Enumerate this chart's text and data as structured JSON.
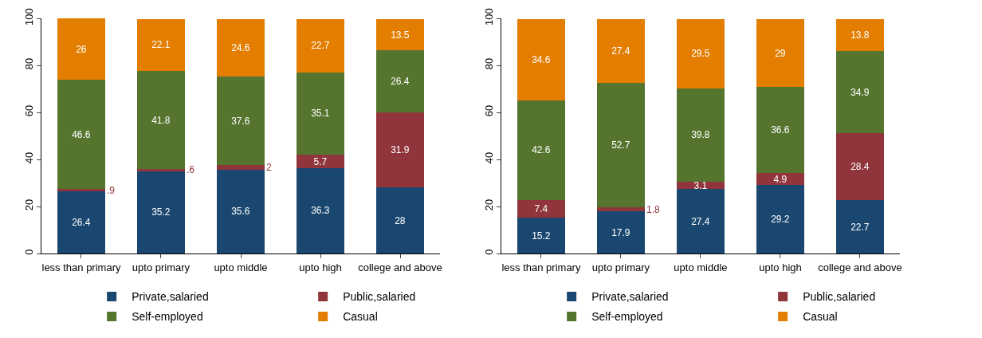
{
  "chart_data": [
    {
      "type": "bar",
      "stacked": true,
      "categories": [
        "less than primary",
        "upto primary",
        "upto middle",
        "upto high",
        "college and above"
      ],
      "ylim": [
        0,
        100
      ],
      "yticks": [
        0,
        20,
        40,
        60,
        80,
        100
      ],
      "grid": false,
      "legend": "bottom",
      "series": [
        {
          "name": "Private,salaried",
          "color": "#1a476f",
          "values": [
            26.4,
            35.2,
            35.6,
            36.3,
            28
          ],
          "value_labels": [
            "26.4",
            "35.2",
            "35.6",
            "36.3",
            "28"
          ]
        },
        {
          "name": "Public,salaried",
          "color": "#90353b",
          "values": [
            0.9,
            0.6,
            2,
            5.7,
            31.9
          ],
          "value_labels": [
            ".9",
            ".6",
            "2",
            "5.7",
            "31.9"
          ]
        },
        {
          "name": "Self-employed",
          "color": "#55752f",
          "values": [
            46.6,
            41.8,
            37.6,
            35.1,
            26.4
          ],
          "value_labels": [
            "46.6",
            "41.8",
            "37.6",
            "35.1",
            "26.4"
          ]
        },
        {
          "name": "Casual",
          "color": "#e37e00",
          "values": [
            26,
            22.1,
            24.6,
            22.7,
            13.5
          ],
          "value_labels": [
            "26",
            "22.1",
            "24.6",
            "22.7",
            "13.5"
          ]
        }
      ]
    },
    {
      "type": "bar",
      "stacked": true,
      "categories": [
        "less than primary",
        "upto primary",
        "upto middle",
        "upto high",
        "college and above"
      ],
      "ylim": [
        0,
        100
      ],
      "yticks": [
        0,
        20,
        40,
        60,
        80,
        100
      ],
      "grid": false,
      "legend": "bottom",
      "series": [
        {
          "name": "Private,salaried",
          "color": "#1a476f",
          "values": [
            15.2,
            17.9,
            27.4,
            29.2,
            22.7
          ],
          "value_labels": [
            "15.2",
            "17.9",
            "27.4",
            "29.2",
            "22.7"
          ]
        },
        {
          "name": "Public,salaried",
          "color": "#90353b",
          "values": [
            7.4,
            1.8,
            3.1,
            4.9,
            28.4
          ],
          "value_labels": [
            "7.4",
            "1.8",
            "3.1",
            "4.9",
            "28.4"
          ]
        },
        {
          "name": "Self-employed",
          "color": "#55752f",
          "values": [
            42.6,
            52.7,
            39.8,
            36.6,
            34.9
          ],
          "value_labels": [
            "42.6",
            "52.7",
            "39.8",
            "36.6",
            "34.9"
          ]
        },
        {
          "name": "Casual",
          "color": "#e37e00",
          "values": [
            34.6,
            27.4,
            29.5,
            29,
            13.8
          ],
          "value_labels": [
            "34.6",
            "27.4",
            "29.5",
            "29",
            "13.8"
          ]
        }
      ]
    }
  ]
}
